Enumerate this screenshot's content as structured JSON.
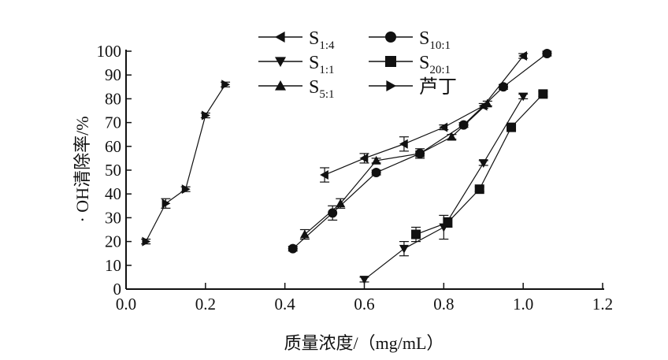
{
  "chart_data": {
    "type": "line",
    "title": "",
    "xlabel": "质量浓度/（mg/mL）",
    "ylabel": "· OH清除率/%",
    "xlim": [
      0,
      1.2
    ],
    "ylim": [
      0,
      100
    ],
    "xticks": [
      "0.0",
      "0.2",
      "0.4",
      "0.6",
      "0.8",
      "1.0",
      "1.2"
    ],
    "yticks": [
      "0",
      "10",
      "20",
      "30",
      "40",
      "50",
      "60",
      "70",
      "80",
      "90",
      "100"
    ],
    "legend_placement": "top-center",
    "series": [
      {
        "name": "S1:4",
        "label_main": "S",
        "label_sub": "1:4",
        "marker": "triangle-left",
        "x": [
          0.5,
          0.6,
          0.7,
          0.8,
          0.9,
          1.0
        ],
        "y": [
          48,
          55,
          61,
          68,
          77,
          98
        ],
        "err": [
          3,
          2,
          3,
          1,
          1,
          1
        ]
      },
      {
        "name": "S10:1",
        "label_main": "S",
        "label_sub": "10:1",
        "marker": "circle",
        "x": [
          0.42,
          0.52,
          0.63,
          0.74,
          0.85,
          0.95,
          1.06
        ],
        "y": [
          17,
          32,
          49,
          57,
          69,
          85,
          99
        ],
        "err": [
          1,
          3,
          1,
          1,
          1,
          1,
          1
        ]
      },
      {
        "name": "S1:1",
        "label_main": "S",
        "label_sub": "1:1",
        "marker": "triangle-down",
        "x": [
          0.6,
          0.7,
          0.8,
          0.9,
          1.0
        ],
        "y": [
          4,
          17,
          26,
          53,
          81
        ],
        "err": [
          1,
          3,
          5,
          1,
          1
        ]
      },
      {
        "name": "S20:1",
        "label_main": "S",
        "label_sub": "20:1",
        "marker": "square",
        "x": [
          0.73,
          0.81,
          0.89,
          0.97,
          1.05
        ],
        "y": [
          23,
          28,
          42,
          68,
          82
        ],
        "err": [
          3,
          2,
          1,
          1,
          1
        ]
      },
      {
        "name": "S5:1",
        "label_main": "S",
        "label_sub": "5:1",
        "marker": "triangle-up",
        "x": [
          0.45,
          0.54,
          0.63,
          0.74,
          0.82,
          0.91
        ],
        "y": [
          23,
          36,
          54,
          57,
          64,
          78
        ],
        "err": [
          2,
          2,
          1,
          2,
          1,
          1
        ]
      },
      {
        "name": "芦丁",
        "label_main": "芦丁",
        "label_sub": "",
        "marker": "triangle-right",
        "x": [
          0.05,
          0.1,
          0.15,
          0.2,
          0.25
        ],
        "y": [
          20,
          36,
          42,
          73,
          86
        ],
        "err": [
          1,
          2,
          1,
          1,
          1
        ]
      }
    ]
  }
}
